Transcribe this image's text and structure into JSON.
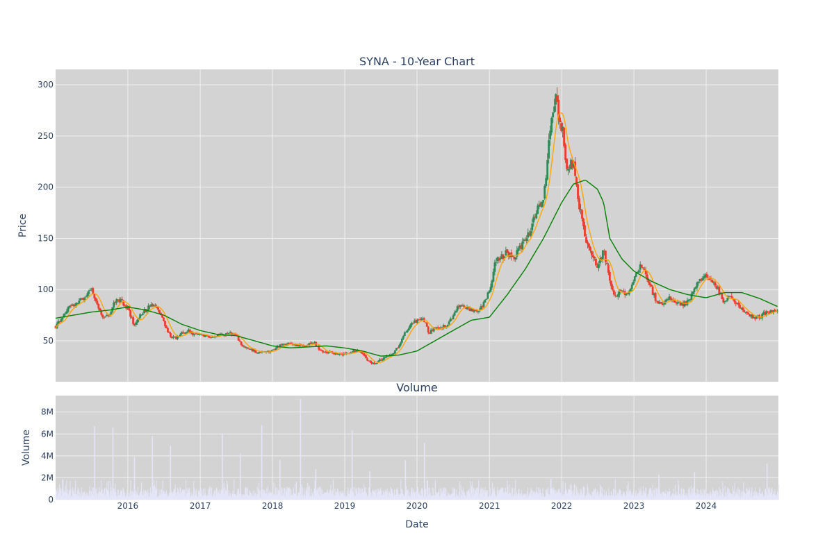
{
  "colors": {
    "plot_bg": "#d3d3d3",
    "grid": "#f0f0f0",
    "increasing": "#2e8b57",
    "decreasing": "#ef3b2c",
    "ma_short": "#ffa500",
    "ma_long": "#008000",
    "volume": "#e6e6fa",
    "text": "#2a3f5f"
  },
  "chart_data": [
    {
      "type": "candlestick",
      "title": "SYNA - 10-Year Chart",
      "ylabel": "Price",
      "xlim": [
        "2015-01-01",
        "2024-12-31"
      ],
      "ylim": [
        10,
        315
      ],
      "yticks": [
        50,
        100,
        150,
        200,
        250,
        300
      ],
      "xticks": [
        {
          "date": "2016-01-01",
          "label": "2016"
        },
        {
          "date": "2017-01-01",
          "label": "2017"
        },
        {
          "date": "2018-01-01",
          "label": "2018"
        },
        {
          "date": "2019-01-01",
          "label": "2019"
        },
        {
          "date": "2020-01-01",
          "label": "2020"
        },
        {
          "date": "2021-01-01",
          "label": "2021"
        },
        {
          "date": "2022-01-01",
          "label": "2022"
        },
        {
          "date": "2023-01-01",
          "label": "2023"
        },
        {
          "date": "2024-01-01",
          "label": "2024"
        }
      ],
      "grid": true,
      "price_path": [
        [
          "2015-01-01",
          64
        ],
        [
          "2015-02-01",
          72
        ],
        [
          "2015-03-01",
          82
        ],
        [
          "2015-04-01",
          85
        ],
        [
          "2015-05-01",
          88
        ],
        [
          "2015-06-01",
          95
        ],
        [
          "2015-07-01",
          100
        ],
        [
          "2015-08-01",
          85
        ],
        [
          "2015-09-01",
          72
        ],
        [
          "2015-10-01",
          75
        ],
        [
          "2015-11-01",
          90
        ],
        [
          "2015-12-01",
          88
        ],
        [
          "2016-01-01",
          82
        ],
        [
          "2016-02-01",
          65
        ],
        [
          "2016-03-01",
          75
        ],
        [
          "2016-04-01",
          80
        ],
        [
          "2016-05-01",
          85
        ],
        [
          "2016-06-01",
          80
        ],
        [
          "2016-07-01",
          68
        ],
        [
          "2016-08-01",
          55
        ],
        [
          "2016-09-01",
          52
        ],
        [
          "2016-10-01",
          58
        ],
        [
          "2016-11-01",
          60
        ],
        [
          "2016-12-01",
          56
        ],
        [
          "2017-02-01",
          54
        ],
        [
          "2017-04-01",
          55
        ],
        [
          "2017-06-01",
          57
        ],
        [
          "2017-07-01",
          55
        ],
        [
          "2017-08-01",
          45
        ],
        [
          "2017-09-01",
          42
        ],
        [
          "2017-10-01",
          40
        ],
        [
          "2017-11-01",
          38
        ],
        [
          "2018-01-01",
          40
        ],
        [
          "2018-02-01",
          45
        ],
        [
          "2018-04-01",
          47
        ],
        [
          "2018-06-01",
          45
        ],
        [
          "2018-08-01",
          48
        ],
        [
          "2018-09-01",
          40
        ],
        [
          "2018-11-01",
          38
        ],
        [
          "2019-01-01",
          37
        ],
        [
          "2019-03-01",
          40
        ],
        [
          "2019-04-01",
          38
        ],
        [
          "2019-05-01",
          30
        ],
        [
          "2019-06-01",
          28
        ],
        [
          "2019-08-01",
          35
        ],
        [
          "2019-09-01",
          38
        ],
        [
          "2019-10-01",
          45
        ],
        [
          "2019-11-01",
          58
        ],
        [
          "2019-12-01",
          65
        ],
        [
          "2020-01-01",
          70
        ],
        [
          "2020-02-01",
          72
        ],
        [
          "2020-03-01",
          58
        ],
        [
          "2020-04-01",
          62
        ],
        [
          "2020-05-01",
          63
        ],
        [
          "2020-06-01",
          65
        ],
        [
          "2020-07-01",
          75
        ],
        [
          "2020-08-01",
          85
        ],
        [
          "2020-09-01",
          82
        ],
        [
          "2020-10-01",
          80
        ],
        [
          "2020-11-01",
          80
        ],
        [
          "2020-12-01",
          85
        ],
        [
          "2021-01-01",
          100
        ],
        [
          "2021-02-01",
          128
        ],
        [
          "2021-03-01",
          132
        ],
        [
          "2021-04-01",
          136
        ],
        [
          "2021-05-01",
          130
        ],
        [
          "2021-06-01",
          140
        ],
        [
          "2021-07-01",
          150
        ],
        [
          "2021-08-01",
          160
        ],
        [
          "2021-09-01",
          180
        ],
        [
          "2021-10-01",
          185
        ],
        [
          "2021-11-01",
          250
        ],
        [
          "2021-12-01",
          285
        ],
        [
          "2022-01-01",
          260
        ],
        [
          "2022-02-01",
          215
        ],
        [
          "2022-03-01",
          225
        ],
        [
          "2022-04-01",
          180
        ],
        [
          "2022-05-01",
          150
        ],
        [
          "2022-06-01",
          135
        ],
        [
          "2022-07-01",
          120
        ],
        [
          "2022-08-01",
          140
        ],
        [
          "2022-09-01",
          110
        ],
        [
          "2022-10-01",
          92
        ],
        [
          "2022-11-01",
          100
        ],
        [
          "2022-12-01",
          95
        ],
        [
          "2023-01-01",
          110
        ],
        [
          "2023-02-01",
          125
        ],
        [
          "2023-03-01",
          115
        ],
        [
          "2023-04-01",
          100
        ],
        [
          "2023-05-01",
          85
        ],
        [
          "2023-06-01",
          88
        ],
        [
          "2023-07-01",
          92
        ],
        [
          "2023-08-01",
          88
        ],
        [
          "2023-09-01",
          85
        ],
        [
          "2023-10-01",
          88
        ],
        [
          "2023-11-01",
          100
        ],
        [
          "2023-12-01",
          110
        ],
        [
          "2024-01-01",
          112
        ],
        [
          "2024-02-01",
          108
        ],
        [
          "2024-03-01",
          100
        ],
        [
          "2024-04-01",
          88
        ],
        [
          "2024-05-01",
          92
        ],
        [
          "2024-06-01",
          88
        ],
        [
          "2024-07-01",
          80
        ],
        [
          "2024-08-01",
          75
        ],
        [
          "2024-09-01",
          73
        ],
        [
          "2024-10-01",
          74
        ],
        [
          "2024-11-01",
          78
        ],
        [
          "2024-12-31",
          78
        ]
      ],
      "ma_long_path": [
        [
          "2015-01-01",
          72
        ],
        [
          "2015-04-01",
          75
        ],
        [
          "2015-07-01",
          78
        ],
        [
          "2015-10-01",
          80
        ],
        [
          "2016-01-01",
          83
        ],
        [
          "2016-04-01",
          80
        ],
        [
          "2016-07-01",
          75
        ],
        [
          "2016-10-01",
          66
        ],
        [
          "2017-01-01",
          60
        ],
        [
          "2017-04-01",
          56
        ],
        [
          "2017-07-01",
          55
        ],
        [
          "2017-10-01",
          50
        ],
        [
          "2018-01-01",
          45
        ],
        [
          "2018-04-01",
          43
        ],
        [
          "2018-07-01",
          44
        ],
        [
          "2018-10-01",
          45
        ],
        [
          "2019-01-01",
          43
        ],
        [
          "2019-04-01",
          40
        ],
        [
          "2019-07-01",
          35
        ],
        [
          "2019-10-01",
          36
        ],
        [
          "2020-01-01",
          40
        ],
        [
          "2020-04-01",
          50
        ],
        [
          "2020-07-01",
          60
        ],
        [
          "2020-10-01",
          70
        ],
        [
          "2021-01-01",
          73
        ],
        [
          "2021-04-01",
          95
        ],
        [
          "2021-07-01",
          120
        ],
        [
          "2021-10-01",
          150
        ],
        [
          "2022-01-01",
          185
        ],
        [
          "2022-03-01",
          203
        ],
        [
          "2022-05-01",
          207
        ],
        [
          "2022-07-01",
          198
        ],
        [
          "2022-08-01",
          185
        ],
        [
          "2022-09-01",
          150
        ],
        [
          "2022-11-01",
          130
        ],
        [
          "2023-01-01",
          118
        ],
        [
          "2023-04-01",
          108
        ],
        [
          "2023-07-01",
          100
        ],
        [
          "2023-10-01",
          95
        ],
        [
          "2024-01-01",
          92
        ],
        [
          "2024-04-01",
          97
        ],
        [
          "2024-07-01",
          97
        ],
        [
          "2024-10-01",
          91
        ],
        [
          "2024-12-31",
          83
        ]
      ]
    },
    {
      "type": "bar",
      "title": "Volume",
      "xlabel": "Date",
      "ylabel": "Volume",
      "ylim": [
        0,
        9500000
      ],
      "yticks": [
        {
          "value": 0,
          "label": "0"
        },
        {
          "value": 2000000,
          "label": "2M"
        },
        {
          "value": 4000000,
          "label": "4M"
        },
        {
          "value": 6000000,
          "label": "6M"
        },
        {
          "value": 8000000,
          "label": "8M"
        }
      ],
      "spikes": [
        [
          "2015-07-15",
          6700000
        ],
        [
          "2015-10-15",
          6600000
        ],
        [
          "2016-02-01",
          3900000
        ],
        [
          "2016-05-01",
          5800000
        ],
        [
          "2016-08-01",
          4900000
        ],
        [
          "2017-04-20",
          6000000
        ],
        [
          "2017-07-20",
          4200000
        ],
        [
          "2017-11-05",
          6800000
        ],
        [
          "2018-02-05",
          3600000
        ],
        [
          "2018-05-20",
          9200000
        ],
        [
          "2018-08-05",
          2800000
        ],
        [
          "2019-02-05",
          6300000
        ],
        [
          "2019-05-05",
          2600000
        ],
        [
          "2019-11-01",
          3600000
        ],
        [
          "2020-02-05",
          5200000
        ],
        [
          "2021-11-05",
          1900000
        ],
        [
          "2023-05-05",
          2300000
        ],
        [
          "2023-11-01",
          2500000
        ],
        [
          "2024-11-01",
          3300000
        ]
      ]
    }
  ]
}
